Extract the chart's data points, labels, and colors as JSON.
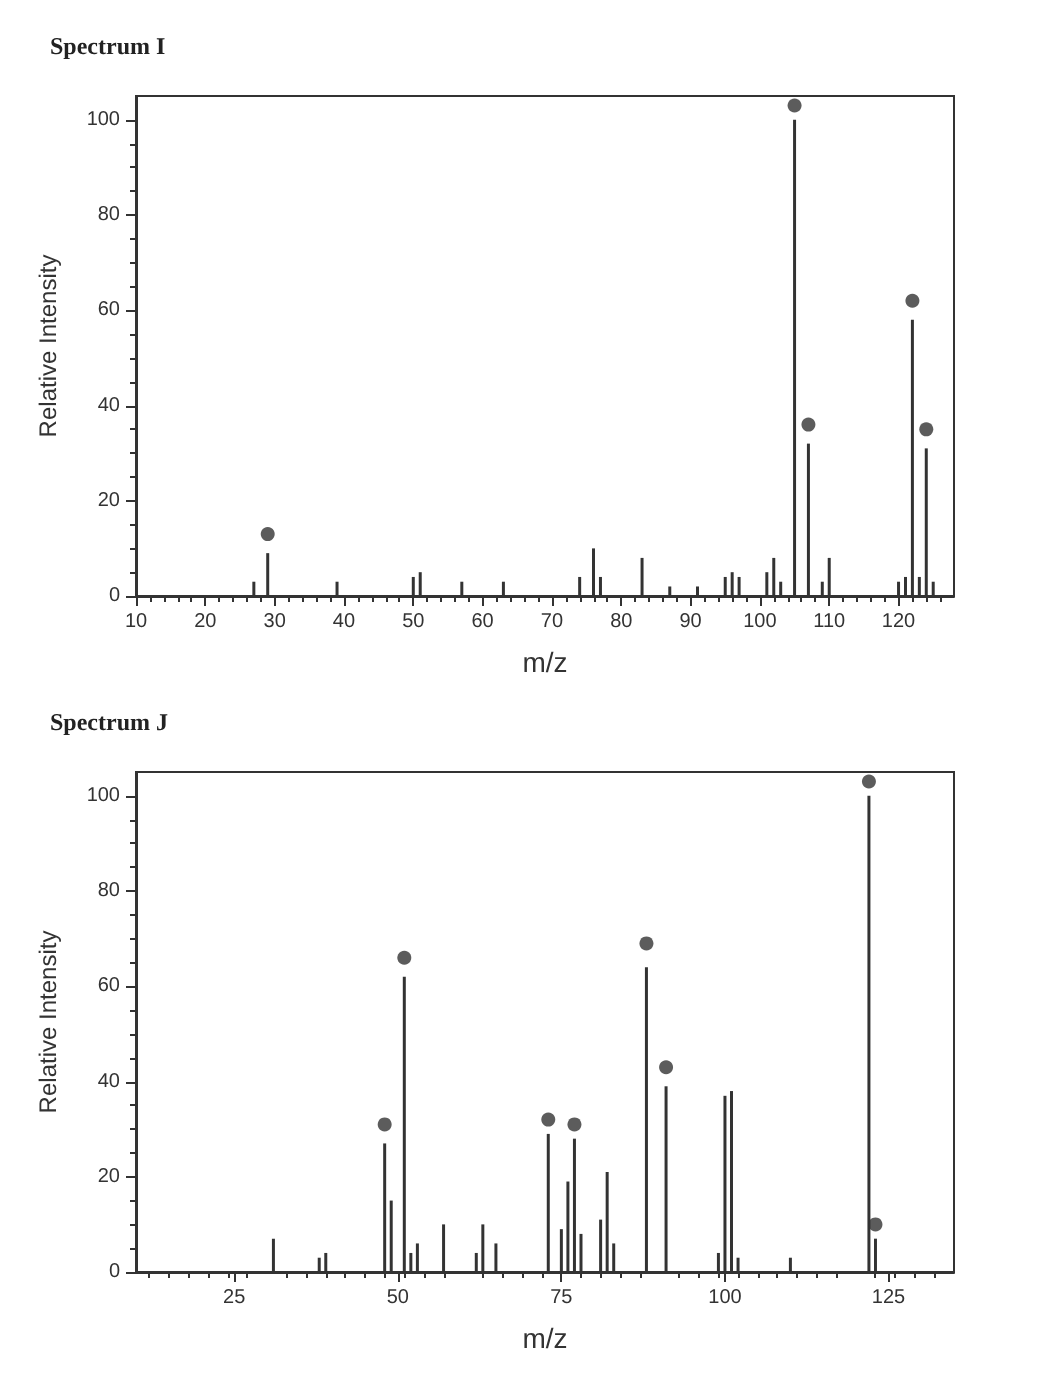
{
  "chart_data": [
    {
      "type": "bar",
      "title": "Spectrum I",
      "xlabel": "m/z",
      "ylabel": "Relative Intensity",
      "xlim": [
        10,
        128
      ],
      "xticks": [
        10,
        20,
        30,
        40,
        50,
        60,
        70,
        80,
        90,
        100,
        110,
        120
      ],
      "ylim": [
        0,
        105
      ],
      "yticks": [
        0,
        20,
        40,
        60,
        80,
        100
      ],
      "grid": false,
      "marker": "circle",
      "series": [
        {
          "color": "#333333",
          "x": [
            27,
            29,
            39,
            50,
            51,
            57,
            63,
            74,
            76,
            77,
            83,
            87,
            91,
            95,
            96,
            97,
            101,
            102,
            103,
            105,
            107,
            109,
            110,
            120,
            121,
            122,
            123,
            124,
            125
          ],
          "values": [
            3,
            9,
            3,
            4,
            5,
            3,
            3,
            4,
            10,
            4,
            8,
            2,
            2,
            4,
            5,
            4,
            5,
            8,
            3,
            100,
            32,
            3,
            8,
            3,
            4,
            58,
            4,
            31,
            3
          ]
        },
        {
          "type": "scatter",
          "color": "#333333",
          "x": [
            29,
            105,
            107,
            122,
            124
          ],
          "values": [
            13,
            103,
            36,
            62,
            35
          ]
        }
      ]
    },
    {
      "type": "bar",
      "title": "Spectrum J",
      "xlabel": "m/z",
      "ylabel": "Relative Intensity",
      "xlim": [
        10,
        135
      ],
      "xticks": [
        25,
        50,
        75,
        100,
        125
      ],
      "ylim": [
        0,
        105
      ],
      "yticks": [
        0,
        20,
        40,
        60,
        80,
        100
      ],
      "grid": false,
      "marker": "circle",
      "series": [
        {
          "color": "#333333",
          "x": [
            31,
            38,
            39,
            48,
            49,
            51,
            52,
            53,
            57,
            62,
            63,
            65,
            73,
            75,
            76,
            77,
            78,
            81,
            82,
            83,
            88,
            91,
            99,
            100,
            101,
            102,
            110,
            122,
            123
          ],
          "values": [
            7,
            3,
            4,
            27,
            15,
            62,
            4,
            6,
            10,
            4,
            10,
            6,
            29,
            9,
            19,
            28,
            8,
            11,
            21,
            6,
            64,
            39,
            4,
            37,
            38,
            3,
            3,
            100,
            7
          ]
        },
        {
          "type": "scatter",
          "color": "#333333",
          "x": [
            48,
            51,
            73,
            77,
            88,
            91,
            122,
            123
          ],
          "values": [
            31,
            66,
            32,
            31,
            69,
            43,
            103,
            10
          ]
        }
      ]
    }
  ]
}
